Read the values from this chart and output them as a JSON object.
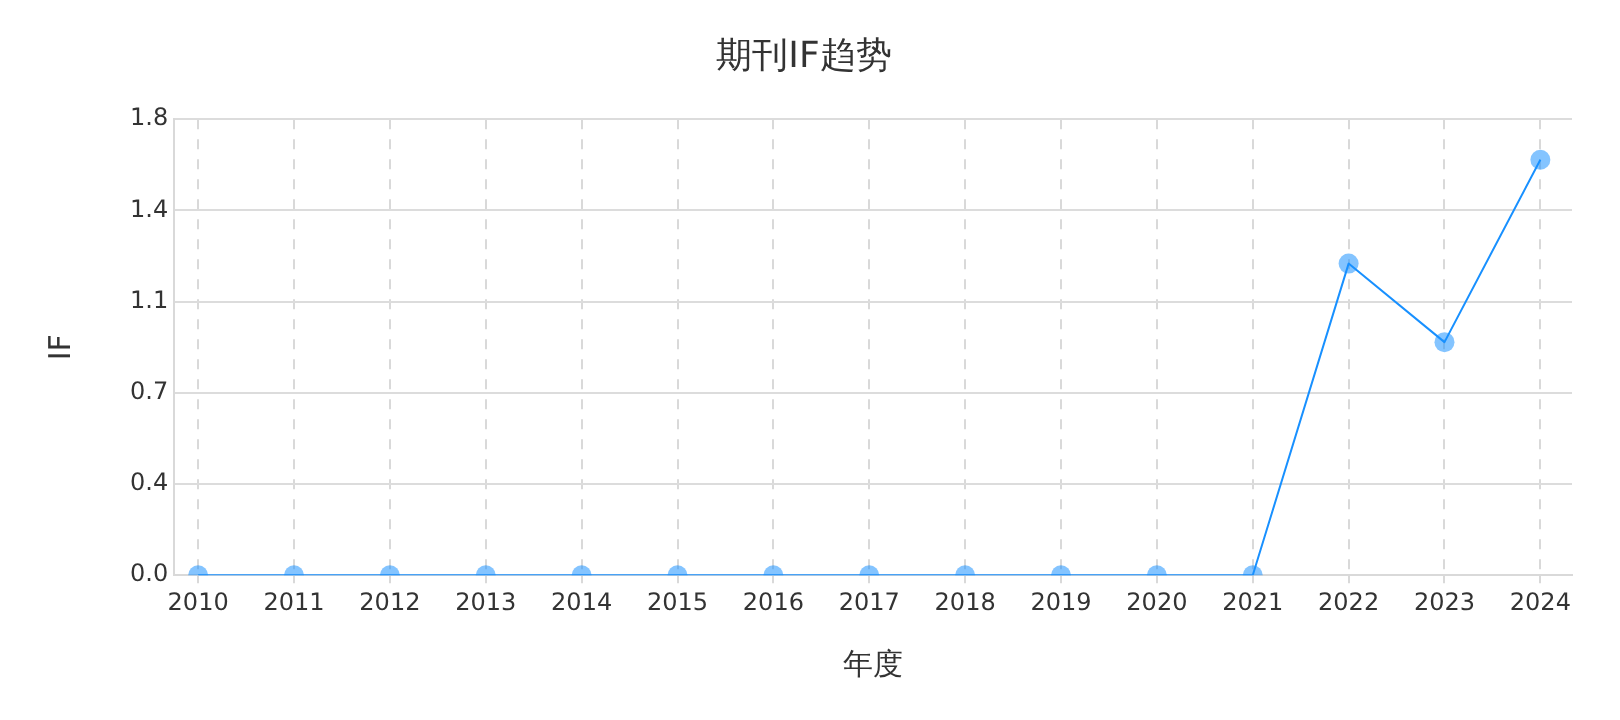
{
  "chart_data": {
    "type": "line",
    "title": "期刊IF趋势",
    "xlabel": "年度",
    "ylabel": "IF",
    "categories": [
      "2010",
      "2011",
      "2012",
      "2013",
      "2014",
      "2015",
      "2016",
      "2017",
      "2018",
      "2019",
      "2020",
      "2021",
      "2022",
      "2023",
      "2024"
    ],
    "series": [
      {
        "color": "#1890ff",
        "values": [
          0,
          0,
          0,
          0,
          0,
          0,
          0,
          0,
          0,
          0,
          0,
          0,
          1.23,
          0.92,
          1.64
        ]
      }
    ],
    "ylim": [
      0,
      1.8
    ],
    "yticks": [
      {
        "value": 0,
        "label": "0.0"
      },
      {
        "value": 0.36,
        "label": "0.4"
      },
      {
        "value": 0.72,
        "label": "0.7"
      },
      {
        "value": 1.08,
        "label": "1.1"
      },
      {
        "value": 1.44,
        "label": "1.4"
      },
      {
        "value": 1.8,
        "label": "1.8"
      }
    ],
    "grid": true,
    "marker": "circle",
    "line_style": "solid"
  }
}
